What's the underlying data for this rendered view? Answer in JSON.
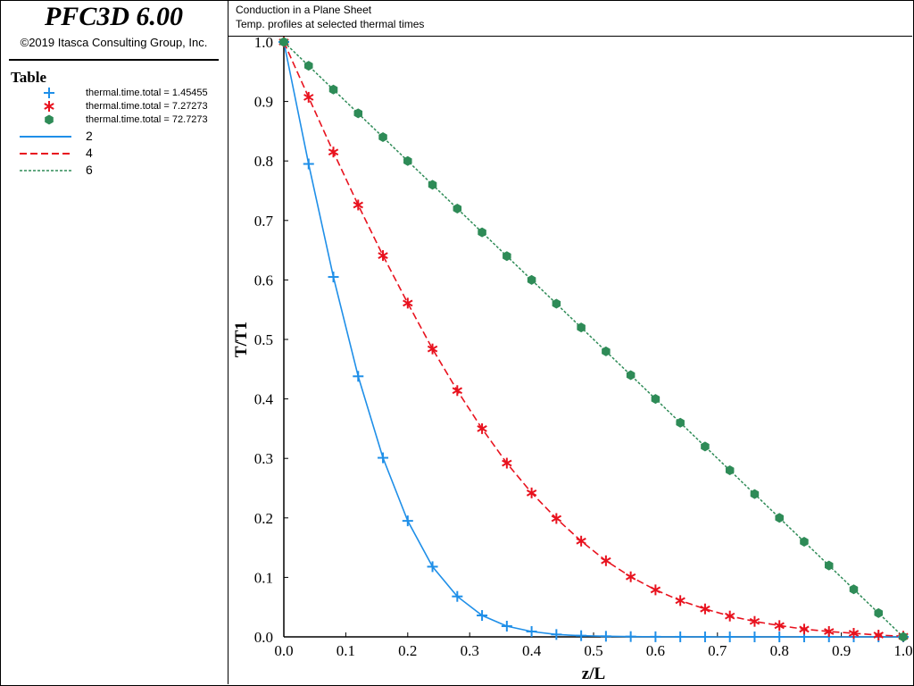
{
  "app": {
    "title": "PFC3D 6.00",
    "copyright": "©2019 Itasca Consulting Group, Inc."
  },
  "legend": {
    "title": "Table",
    "items": [
      {
        "label": "thermal.time.total = 1.45455",
        "symbol": "plus",
        "color": "#1f8fe8"
      },
      {
        "label": "thermal.time.total = 7.27273",
        "symbol": "asterisk",
        "color": "#e8121e"
      },
      {
        "label": "thermal.time.total = 72.7273",
        "symbol": "hexagon",
        "color": "#2e8b57"
      },
      {
        "label": "2",
        "symbol": "solid-line",
        "color": "#1f8fe8"
      },
      {
        "label": "4",
        "symbol": "dashed-line",
        "color": "#e8121e"
      },
      {
        "label": "6",
        "symbol": "dotted-line",
        "color": "#2e8b57"
      }
    ]
  },
  "chart_data": {
    "type": "line",
    "title": "Conduction in a Plane Sheet",
    "subtitle": "Temp. profiles at selected thermal times",
    "xlabel": "z/L",
    "ylabel": "T/T1",
    "xlim": [
      0,
      1
    ],
    "ylim": [
      0,
      1
    ],
    "xticks": [
      "0.0",
      "0.1",
      "0.2",
      "0.3",
      "0.4",
      "0.5",
      "0.6",
      "0.7",
      "0.8",
      "0.9",
      "1.0"
    ],
    "yticks": [
      "0.0",
      "0.1",
      "0.2",
      "0.3",
      "0.4",
      "0.5",
      "0.6",
      "0.7",
      "0.8",
      "0.9",
      "1.0"
    ],
    "grid": false,
    "x": [
      0.0,
      0.04,
      0.08,
      0.12,
      0.16,
      0.2,
      0.24,
      0.28,
      0.32,
      0.36,
      0.4,
      0.44,
      0.48,
      0.52,
      0.56,
      0.6,
      0.64,
      0.68,
      0.72,
      0.76,
      0.8,
      0.84,
      0.88,
      0.92,
      0.96,
      1.0
    ],
    "series": [
      {
        "name": "thermal.time.total = 1.45455",
        "style": "markers",
        "marker": "plus",
        "color": "#1f8fe8",
        "values": [
          1.0,
          0.795,
          0.605,
          0.438,
          0.301,
          0.195,
          0.118,
          0.068,
          0.036,
          0.018,
          0.009,
          0.004,
          0.002,
          0.001,
          0.0005,
          0.0002,
          0.0001,
          0,
          0,
          0,
          0,
          0,
          0,
          0,
          0,
          0
        ]
      },
      {
        "name": "thermal.time.total = 7.27273",
        "style": "markers",
        "marker": "asterisk",
        "color": "#e8121e",
        "values": [
          1.0,
          0.907,
          0.815,
          0.726,
          0.641,
          0.561,
          0.484,
          0.414,
          0.35,
          0.292,
          0.242,
          0.199,
          0.161,
          0.128,
          0.101,
          0.079,
          0.061,
          0.047,
          0.035,
          0.026,
          0.019,
          0.013,
          0.009,
          0.006,
          0.003,
          0.001
        ]
      },
      {
        "name": "thermal.time.total = 72.7273",
        "style": "markers",
        "marker": "hexagon",
        "color": "#2e8b57",
        "values": [
          1.0,
          0.96,
          0.92,
          0.88,
          0.84,
          0.8,
          0.76,
          0.72,
          0.68,
          0.64,
          0.6,
          0.56,
          0.52,
          0.48,
          0.44,
          0.4,
          0.36,
          0.32,
          0.28,
          0.24,
          0.2,
          0.16,
          0.12,
          0.08,
          0.04,
          0.0
        ]
      },
      {
        "name": "2",
        "style": "solid",
        "color": "#1f8fe8",
        "values": [
          1.0,
          0.795,
          0.605,
          0.438,
          0.301,
          0.195,
          0.118,
          0.068,
          0.036,
          0.018,
          0.009,
          0.004,
          0.002,
          0.001,
          0.0005,
          0.0002,
          0.0001,
          0,
          0,
          0,
          0,
          0,
          0,
          0,
          0,
          0
        ]
      },
      {
        "name": "4",
        "style": "dashed",
        "color": "#e8121e",
        "values": [
          1.0,
          0.907,
          0.815,
          0.726,
          0.641,
          0.561,
          0.484,
          0.414,
          0.35,
          0.292,
          0.242,
          0.199,
          0.161,
          0.128,
          0.101,
          0.079,
          0.061,
          0.047,
          0.035,
          0.026,
          0.019,
          0.013,
          0.009,
          0.006,
          0.003,
          0.001
        ]
      },
      {
        "name": "6",
        "style": "dotted",
        "color": "#2e8b57",
        "values": [
          1.0,
          0.96,
          0.92,
          0.88,
          0.84,
          0.8,
          0.76,
          0.72,
          0.68,
          0.64,
          0.6,
          0.56,
          0.52,
          0.48,
          0.44,
          0.4,
          0.36,
          0.32,
          0.28,
          0.24,
          0.2,
          0.16,
          0.12,
          0.08,
          0.04,
          0.0
        ]
      }
    ]
  }
}
